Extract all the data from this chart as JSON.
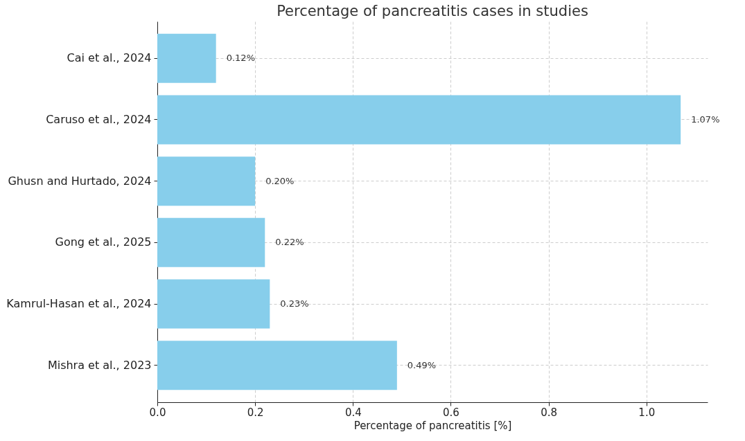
{
  "chart_data": {
    "type": "bar",
    "orientation": "horizontal",
    "title": "Percentage of pancreatitis cases in studies",
    "xlabel": "Percentage of pancreatitis [%]",
    "categories": [
      "Cai et al., 2024",
      "Caruso et al., 2024",
      "Ghusn and Hurtado, 2024",
      "Gong et al., 2025",
      "Kamrul-Hasan et al., 2024",
      "Mishra et al., 2023"
    ],
    "values": [
      0.12,
      1.07,
      0.2,
      0.22,
      0.23,
      0.49
    ],
    "value_labels": [
      "0.12%",
      "1.07%",
      "0.20%",
      "0.22%",
      "0.23%",
      "0.49%"
    ],
    "color": "#87ceeb",
    "xlim": [
      0,
      1.125
    ],
    "xticks": [
      {
        "value": 0,
        "label": "0.0"
      },
      0.2,
      0.4,
      0.6,
      0.8,
      {
        "value": 1,
        "label": "1.0"
      }
    ],
    "grid": true
  }
}
